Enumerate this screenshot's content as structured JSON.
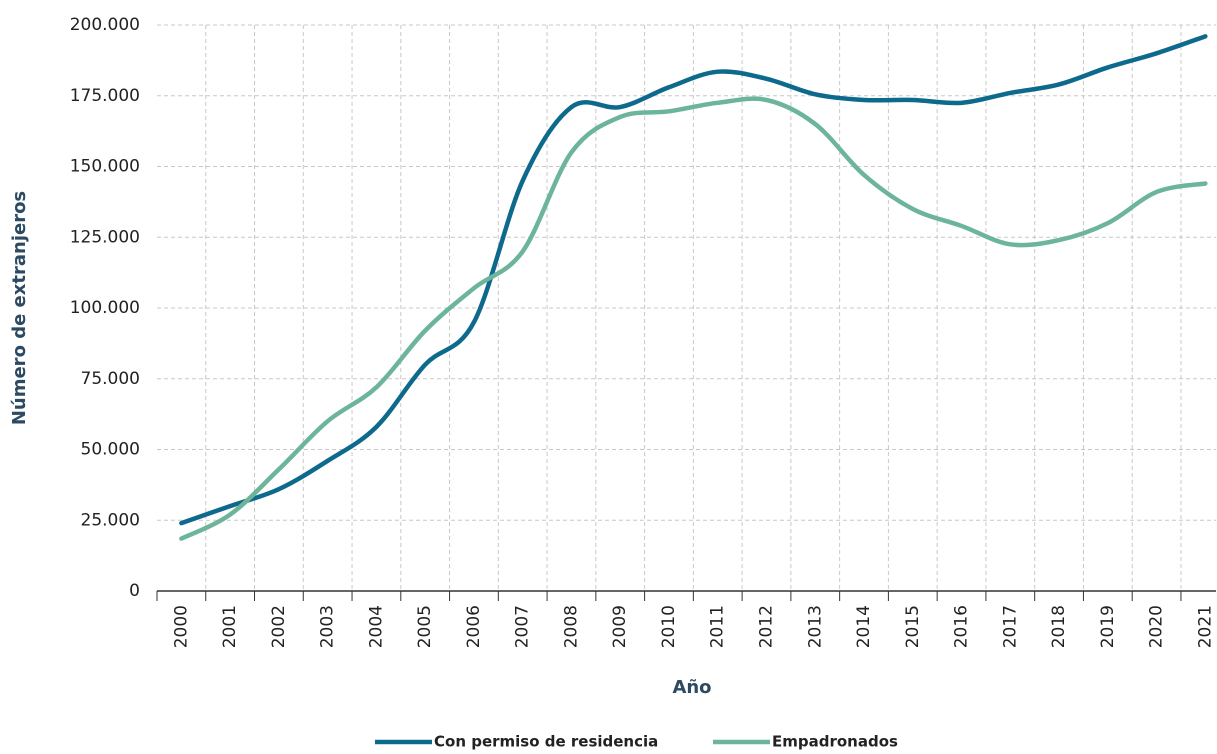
{
  "chart_data": {
    "type": "line",
    "y_label": "Número de extranjeros",
    "x_label": "Año",
    "categories": [
      "2000",
      "2001",
      "2002",
      "2003",
      "2004",
      "2005",
      "2006",
      "2007",
      "2008",
      "2009",
      "2010",
      "2011",
      "2012",
      "2013",
      "2014",
      "2015",
      "2016",
      "2017",
      "2018",
      "2019",
      "2020",
      "2021"
    ],
    "series": [
      {
        "name": "Con permiso de residencia",
        "color": "#0e6a8c",
        "values": [
          24000,
          30000,
          36000,
          46000,
          58000,
          80000,
          95000,
          145000,
          171000,
          171000,
          178000,
          183500,
          181000,
          175500,
          173500,
          173500,
          172500,
          176000,
          179000,
          185000,
          190000,
          196000
        ]
      },
      {
        "name": "Empadronados",
        "color": "#6db59a",
        "values": [
          18500,
          27000,
          43000,
          60000,
          72000,
          92000,
          107000,
          120000,
          155000,
          167500,
          169500,
          172500,
          173500,
          165000,
          147000,
          135000,
          129000,
          122500,
          124000,
          130000,
          141000,
          144000
        ]
      }
    ],
    "ylim": [
      0,
      200000
    ],
    "yticks": [
      0,
      {
        "value": 25000,
        "label": "25.000"
      },
      {
        "value": 50000,
        "label": "50.000"
      },
      {
        "value": 75000,
        "label": "75.000"
      },
      {
        "value": 100000,
        "label": "100.000"
      },
      {
        "value": 125000,
        "label": "125.000"
      },
      {
        "value": 150000,
        "label": "150.000"
      },
      {
        "value": 175000,
        "label": "175.000"
      },
      {
        "value": 200000,
        "label": "200.000"
      }
    ],
    "grid": true,
    "legend": "bottom"
  }
}
